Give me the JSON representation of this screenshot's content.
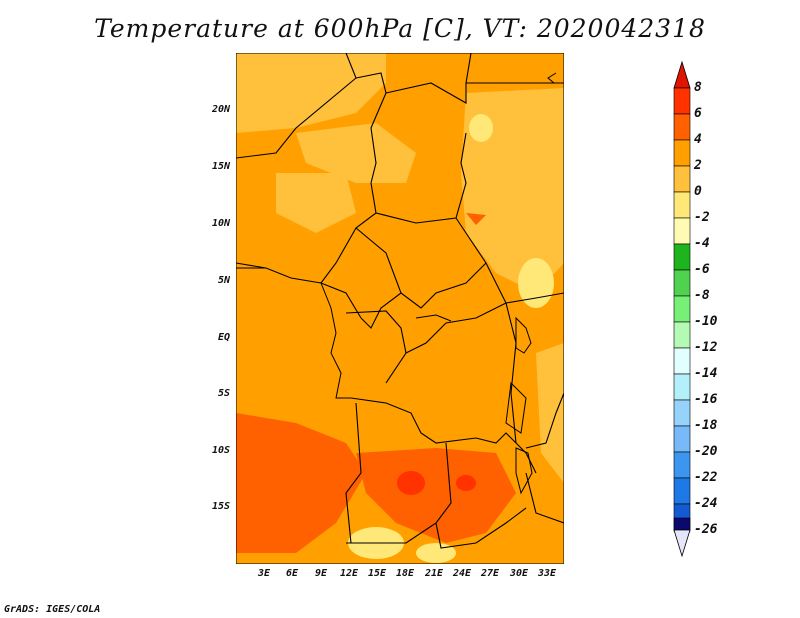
{
  "title": "Temperature at 600hPa [C], VT: 2020042318",
  "credit": "GrADS: IGES/COLA",
  "map": {
    "lat_labels": [
      "20N",
      "15N",
      "10N",
      "5N",
      "EQ",
      "5S",
      "10S",
      "15S"
    ],
    "lon_labels": [
      "3E",
      "6E",
      "9E",
      "12E",
      "15E",
      "18E",
      "21E",
      "24E",
      "27E",
      "30E",
      "33E"
    ]
  },
  "colorbar": {
    "labels": [
      "8",
      "6",
      "4",
      "2",
      "0",
      "-2",
      "-4",
      "-6",
      "-8",
      "-10",
      "-12",
      "-14",
      "-16",
      "-18",
      "-20",
      "-22",
      "-24",
      "-26"
    ],
    "colors": {
      "c0": "#fae6e6",
      "c1": "#0a0a6e",
      "c2": "#0a3cb4",
      "c3": "#145ad2",
      "c4": "#1e78e6",
      "c5": "#3c96f0",
      "c6": "#50a5f5",
      "c7": "#78b9fa",
      "c8": "#96d2fa",
      "c9": "#b4f0fa",
      "c10": "#e1ffff",
      "c11": "#b4fab4",
      "c12": "#78f078",
      "c13": "#50d250",
      "c14": "#1eb41e",
      "c15": "#fffab4",
      "c16": "#ffe878",
      "c17": "#ffc03c",
      "c18": "#ffa000",
      "c19": "#ff6000",
      "c20": "#ff3200",
      "c21": "#e11400"
    }
  },
  "field_colors": {
    "warm_base": "#ffa000",
    "cool_patch": "#ffc03c",
    "coolest_patch": "#ffe878",
    "hot_patch": "#ff6000",
    "hottest_patch": "#ff3200",
    "border": "#000000"
  }
}
